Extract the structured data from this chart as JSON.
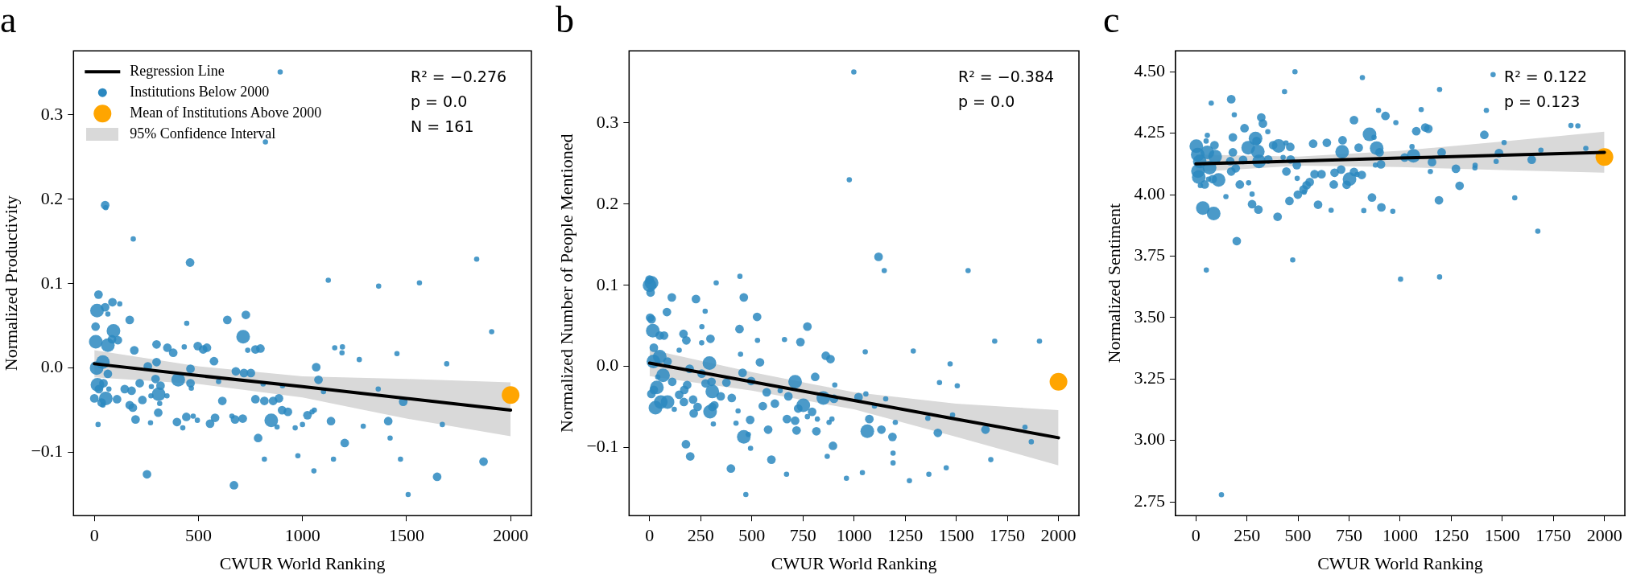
{
  "chart_data": [
    {
      "type": "bubble",
      "title": "a",
      "xlabel": "CWUR World Ranking",
      "ylabel": "Normalized Productivity",
      "xlim": [
        -100,
        2100
      ],
      "ylim": [
        -0.175,
        0.376
      ],
      "xticks": [
        0,
        500,
        1000,
        1500,
        2000
      ],
      "yticks": [
        {
          "value": -0.1,
          "label": "−0.1"
        },
        {
          "value": 0,
          "label": "0.0"
        },
        0.1,
        0.2,
        0.3
      ],
      "legend": "top left",
      "annotations": [
        "R² = −0.276",
        "p = 0.0",
        "N = 161",
        {
          "text": "95% Confidence Interval"
        }
      ],
      "series": [
        {
          "name": "Regression Line",
          "type": "line",
          "marker": "none",
          "color": "#000000",
          "x": [
            0,
            500,
            1000,
            1500,
            2000
          ],
          "values": [
            0.005,
            -0.009,
            -0.022,
            -0.036,
            -0.05
          ],
          "lower": [
            -0.011,
            -0.019,
            -0.035,
            -0.06,
            -0.081
          ],
          "upper": [
            0.021,
            0.002,
            -0.01,
            -0.013,
            -0.017
          ]
        },
        {
          "name": "Institutions Below 2000",
          "type": "bubble",
          "marker": "circle",
          "color": "#2b88c0",
          "x": [
            893,
            822,
            52,
            55,
            187,
            460,
            1837,
            1124,
            1366,
            1562,
            20,
            87,
            122,
            52,
            13,
            65,
            728,
            170,
            639,
            444,
            6,
            1909,
            92,
            715,
            7,
            85,
            113,
            65,
            299,
            351,
            432,
            497,
            379,
            192,
            523,
            541,
            737,
            774,
            798,
            1155,
            1192,
            1190,
            1454,
            1273,
            1693,
            575,
            1066,
            11,
            41,
            299,
            257,
            462,
            65,
            294,
            403,
            680,
            719,
            752,
            1077,
            597,
            462,
            218,
            15,
            44,
            22,
            70,
            146,
            179,
            274,
            318,
            466,
            904,
            811,
            1101,
            1364,
            0,
            55,
            35,
            109,
            231,
            272,
            309,
            349,
            615,
            774,
            817,
            859,
            887,
            1484,
            41,
            170,
            185,
            314,
            902,
            930,
            307,
            442,
            475,
            580,
            661,
            676,
            713,
            850,
            198,
            270,
            397,
            495,
            556,
            1024,
            1057,
            1046,
            1137,
            1412,
            1000,
            965,
            878,
            1292,
            1672,
            18,
            425,
            787,
            1421,
            1203,
            253,
            817,
            978,
            1149,
            1471,
            1870,
            1055,
            1647,
            671,
            1508
          ],
          "values": [
            0.351,
            0.268,
            0.193,
            0.19,
            0.153,
            0.125,
            0.129,
            0.104,
            0.097,
            0.101,
            0.087,
            0.078,
            0.076,
            0.072,
            0.068,
            0.064,
            0.063,
            0.057,
            0.057,
            0.053,
            0.049,
            0.043,
            0.044,
            0.037,
            0.031,
            0.034,
            0.033,
            0.027,
            0.028,
            0.024,
            0.025,
            0.026,
            0.018,
            0.021,
            0.022,
            0.024,
            0.021,
            0.022,
            0.023,
            0.024,
            0.025,
            0.018,
            0.017,
            0.01,
            0.005,
            0.008,
            0.001,
            0,
            0.007,
            0.007,
            0.002,
            -0.001,
            -0.007,
            -0.013,
            -0.014,
            -0.004,
            -0.006,
            -0.006,
            -0.014,
            -0.016,
            -0.018,
            -0.018,
            -0.02,
            -0.018,
            -0.025,
            -0.025,
            -0.025,
            -0.027,
            -0.022,
            -0.021,
            -0.024,
            -0.021,
            -0.019,
            -0.028,
            -0.025,
            -0.036,
            -0.036,
            -0.041,
            -0.037,
            -0.038,
            -0.033,
            -0.031,
            -0.033,
            -0.039,
            -0.037,
            -0.039,
            -0.039,
            -0.036,
            -0.04,
            -0.044,
            -0.044,
            -0.047,
            -0.042,
            -0.05,
            -0.052,
            -0.053,
            -0.058,
            -0.057,
            -0.059,
            -0.057,
            -0.061,
            -0.06,
            -0.062,
            -0.061,
            -0.065,
            -0.064,
            -0.062,
            -0.066,
            -0.056,
            -0.05,
            -0.052,
            -0.063,
            -0.063,
            -0.067,
            -0.071,
            -0.07,
            -0.069,
            -0.067,
            -0.067,
            -0.071,
            -0.083,
            -0.083,
            -0.089,
            -0.126,
            -0.108,
            -0.104,
            -0.108,
            -0.108,
            -0.111,
            -0.122,
            -0.129,
            -0.139,
            -0.15
          ],
          "sizes": [
            0.15,
            0.15,
            0.4,
            0.15,
            0.15,
            0.4,
            0.15,
            0.15,
            0.15,
            0.15,
            0.4,
            0.4,
            0.15,
            0.4,
            1,
            0.15,
            0.4,
            0.4,
            0.4,
            0.15,
            0.4,
            0.15,
            1,
            1,
            1,
            0.4,
            0.4,
            1,
            0.4,
            0.4,
            0.15,
            0.4,
            0.4,
            0.4,
            0.4,
            0.4,
            0.15,
            0.4,
            0.4,
            0.15,
            0.15,
            0.15,
            0.15,
            0.15,
            0.15,
            0.4,
            0.4,
            1,
            1,
            0.4,
            0.4,
            0.4,
            0.4,
            0.4,
            1,
            0.4,
            0.4,
            0.4,
            0.4,
            0.15,
            0.4,
            0.4,
            1,
            0.4,
            0.4,
            0.15,
            0.4,
            0.4,
            0.15,
            0.4,
            0.15,
            0.15,
            0.15,
            0.15,
            0.15,
            0.4,
            1,
            0.4,
            0.4,
            0.4,
            0.15,
            1,
            0.15,
            0.4,
            0.4,
            0.4,
            0.4,
            0.4,
            0.4,
            0.15,
            0.4,
            0.4,
            0.15,
            0.4,
            0.4,
            0.4,
            0.4,
            0.15,
            0.4,
            0.15,
            0.4,
            0.4,
            1,
            0.4,
            0.15,
            0.4,
            0.15,
            0.4,
            0.4,
            0.15,
            0.15,
            0.4,
            0.4,
            0.15,
            0.15,
            0.15,
            0.15,
            0.15,
            0.15,
            0.15,
            0.4,
            0.15,
            0.4,
            0.4,
            0.15,
            0.15,
            0.15,
            0.15,
            0.4,
            0.15,
            0.4,
            0.4,
            0.15
          ]
        },
        {
          "name": "Mean of Institutions Above 2000",
          "type": "scatter",
          "marker": "circle",
          "color": "#ffa500",
          "x": [
            2000
          ],
          "values": [
            -0.032
          ]
        }
      ]
    },
    {
      "type": "bubble",
      "title": "b",
      "xlabel": "CWUR World Ranking",
      "ylabel": "Normalized Number of People Mentioned",
      "xlim": [
        -100,
        2100
      ],
      "ylim": [
        -0.184,
        0.389
      ],
      "xticks": [
        0,
        250,
        500,
        750,
        1000,
        1250,
        1500,
        1750,
        2000
      ],
      "yticks": [
        {
          "value": -0.1,
          "label": "−0.1"
        },
        {
          "value": 0,
          "label": "0.0"
        },
        0.1,
        0.2,
        0.3
      ],
      "annotations": [
        "R² = −0.384",
        "p = 0.0"
      ],
      "series": [
        {
          "type": "line",
          "marker": "none",
          "color": "#000000",
          "x": [
            0,
            500,
            1000,
            1500,
            2000
          ],
          "values": [
            0.004,
            -0.019,
            -0.042,
            -0.065,
            -0.088
          ],
          "lower": [
            -0.012,
            -0.03,
            -0.053,
            -0.087,
            -0.122
          ],
          "upper": [
            0.021,
            -0.007,
            -0.032,
            -0.046,
            -0.054
          ]
        },
        {
          "type": "bubble",
          "marker": "circle",
          "color": "#2b88c0",
          "x": [
            999,
            977,
            1120,
            1148,
            1558,
            0,
            10,
            0,
            5,
            326,
            442,
            109,
            227,
            461,
            85,
            272,
            3,
            10,
            526,
            256,
            16,
            440,
            772,
            50,
            71,
            166,
            180,
            298,
            528,
            660,
            738,
            1688,
            1907,
            255,
            21,
            145,
            445,
            1290,
            1055,
            50,
            862,
            885,
            19,
            88,
            293,
            540,
            1470,
            196,
            66,
            40,
            255,
            455,
            810,
            1418,
            1505,
            111,
            184,
            274,
            303,
            376,
            497,
            712,
            36,
            21,
            170,
            307,
            573,
            639,
            906,
            1058,
            9,
            145,
            348,
            402,
            679,
            850,
            902,
            1022,
            1155,
            55,
            88,
            213,
            168,
            29,
            235,
            307,
            317,
            554,
            613,
            752,
            296,
            216,
            727,
            795,
            1100,
            1482,
            121,
            433,
            492,
            672,
            712,
            772,
            821,
            892,
            1075,
            312,
            423,
            878,
            1202,
            1361,
            580,
            719,
            816,
            1065,
            1134,
            1410,
            1643,
            1836,
            461,
            483,
            1188,
            1867,
            178,
            897,
            199,
            494,
            1191,
            1191,
            869,
            596,
            1669,
            398,
            1451,
            1041,
            670,
            1366,
            963,
            1271,
            471
          ],
          "values": [
            0.363,
            0.23,
            0.135,
            0.118,
            0.118,
            0.107,
            0.103,
            0.1,
            0.091,
            0.103,
            0.111,
            0.085,
            0.083,
            0.085,
            0.067,
            0.068,
            0.06,
            0.058,
            0.061,
            0.049,
            0.044,
            0.046,
            0.049,
            0.038,
            0.038,
            0.04,
            0.032,
            0.034,
            0.032,
            0.033,
            0.03,
            0.031,
            0.031,
            0.029,
            0.023,
            0.02,
            0.015,
            0.019,
            0.018,
            0.012,
            0.013,
            0.009,
            0.006,
            0.006,
            0.004,
            0.005,
            0.003,
            -0.003,
            -0.011,
            -0.013,
            -0.009,
            -0.008,
            -0.013,
            -0.02,
            -0.024,
            -0.019,
            -0.023,
            -0.021,
            -0.019,
            -0.02,
            -0.018,
            -0.019,
            -0.026,
            -0.029,
            -0.029,
            -0.031,
            -0.032,
            -0.03,
            -0.023,
            -0.034,
            -0.034,
            -0.035,
            -0.037,
            -0.039,
            -0.037,
            -0.039,
            -0.04,
            -0.038,
            -0.04,
            -0.044,
            -0.044,
            -0.041,
            -0.044,
            -0.051,
            -0.05,
            -0.05,
            -0.048,
            -0.049,
            -0.046,
            -0.048,
            -0.056,
            -0.058,
            -0.052,
            -0.056,
            -0.049,
            -0.06,
            -0.053,
            -0.055,
            -0.066,
            -0.065,
            -0.067,
            -0.062,
            -0.065,
            -0.065,
            -0.065,
            -0.071,
            -0.07,
            -0.069,
            -0.069,
            -0.064,
            -0.078,
            -0.079,
            -0.08,
            -0.08,
            -0.078,
            -0.082,
            -0.078,
            -0.075,
            -0.087,
            -0.084,
            -0.087,
            -0.093,
            -0.096,
            -0.098,
            -0.111,
            -0.101,
            -0.107,
            -0.119,
            -0.111,
            -0.115,
            -0.115,
            -0.126,
            -0.125,
            -0.131,
            -0.133,
            -0.133,
            -0.138,
            -0.141,
            -0.158
          ],
          "sizes": [
            0.15,
            0.15,
            0.4,
            0.15,
            0.15,
            0.4,
            1,
            1,
            0.4,
            0.15,
            0.15,
            0.4,
            0.4,
            0.4,
            0.4,
            0.15,
            0.4,
            0.4,
            0.4,
            0.15,
            1,
            0.4,
            0.4,
            0.4,
            0.4,
            0.4,
            0.4,
            0.4,
            0.15,
            0.15,
            0.4,
            0.15,
            0.15,
            0.15,
            0.4,
            0.15,
            0.15,
            0.15,
            0.15,
            1,
            0.4,
            0.4,
            1,
            0.4,
            1,
            0.4,
            0.15,
            0.4,
            1,
            0.15,
            0.4,
            0.4,
            0.4,
            0.15,
            0.15,
            0.4,
            0.4,
            0.4,
            0.4,
            0.4,
            0.4,
            1,
            1,
            0.4,
            0.4,
            1,
            0.4,
            0.15,
            0.15,
            0.15,
            0.4,
            0.4,
            0.4,
            0.4,
            0.4,
            1,
            0.4,
            0.4,
            0.15,
            1,
            1,
            0.4,
            0.4,
            1,
            0.4,
            0.4,
            0.4,
            0.4,
            0.4,
            1,
            1,
            0.4,
            0.4,
            0.4,
            0.15,
            0.15,
            0.15,
            0.15,
            0.4,
            0.4,
            0.4,
            0.15,
            0.15,
            0.15,
            0.4,
            0.15,
            0.15,
            0.15,
            0.15,
            0.15,
            0.4,
            0.4,
            0.4,
            1,
            0.4,
            0.4,
            0.4,
            0.15,
            1,
            0.15,
            0.4,
            0.15,
            0.4,
            0.4,
            0.4,
            0.15,
            0.15,
            0.15,
            0.15,
            0.4,
            0.15,
            0.4,
            0.15,
            0.15,
            0.15,
            0.15,
            0.15,
            0.15,
            0.15
          ]
        },
        {
          "type": "scatter",
          "marker": "circle",
          "color": "#ffa500",
          "x": [
            2000
          ],
          "values": [
            -0.019
          ]
        }
      ]
    },
    {
      "type": "bubble",
      "title": "c",
      "xlabel": "CWUR World Ranking",
      "ylabel": "Normalized Sentiment",
      "xlim": [
        -100,
        2100
      ],
      "ylim": [
        2.694,
        4.585
      ],
      "xticks": [
        0,
        250,
        500,
        750,
        1000,
        1250,
        1500,
        1750,
        2000
      ],
      "yticks": [
        2.75,
        {
          "value": 3,
          "label": "3.00"
        },
        3.25,
        {
          "value": 3.5,
          "label": "3.50"
        },
        3.75,
        {
          "value": 4,
          "label": "4.00"
        },
        4.25,
        {
          "value": 4.5,
          "label": "4.50"
        }
      ],
      "annotations": [
        "R² = 0.122",
        "p = 0.123"
      ],
      "series": [
        {
          "type": "line",
          "marker": "none",
          "color": "#000000",
          "x": [
            0,
            500,
            1000,
            1500,
            2000
          ],
          "values": [
            4.125,
            4.137,
            4.149,
            4.16,
            4.172
          ],
          "lower": [
            4.092,
            4.118,
            4.112,
            4.1,
            4.089
          ],
          "upper": [
            4.163,
            4.155,
            4.178,
            4.216,
            4.256
          ]
        },
        {
          "type": "bubble",
          "marker": "circle",
          "color": "#2b88c0",
          "x": [
            485,
            1455,
            815,
            1193,
            434,
            173,
            75,
            1422,
            1103,
            894,
            188,
            320,
            328,
            774,
            928,
            979,
            1836,
            1870,
            238,
            1123,
            1138,
            1079,
            352,
            850,
            56,
            1412,
            181,
            872,
            50,
            292,
            297,
            718,
            641,
            574,
            441,
            1509,
            2,
            91,
            378,
            405,
            462,
            256,
            797,
            885,
            1909,
            1689,
            1058,
            303,
            181,
            716,
            899,
            1203,
            1484,
            9,
            56,
            94,
            1065,
            427,
            1022,
            464,
            19,
            168,
            231,
            309,
            354,
            1156,
            1644,
            1470,
            494,
            906,
            879,
            1367,
            67,
            195,
            1273,
            1366,
            711,
            10,
            173,
            443,
            1148,
            774,
            679,
            581,
            615,
            789,
            812,
            14,
            111,
            82,
            62,
            496,
            752,
            557,
            215,
            675,
            738,
            258,
            43,
            22,
            1291,
            542,
            527,
            530,
            499,
            275,
            147,
            862,
            1190,
            1561,
            458,
            275,
            598,
            34,
            908,
            306,
            662,
            822,
            964,
            87,
            400,
            1674,
            200,
            474,
            51,
            1193,
            1002,
            125
          ],
          "values": [
            4.5,
            4.488,
            4.476,
            4.428,
            4.419,
            4.388,
            4.372,
            4.343,
            4.346,
            4.343,
            4.325,
            4.314,
            4.289,
            4.303,
            4.32,
            4.293,
            4.281,
            4.28,
            4.27,
            4.273,
            4.268,
            4.258,
            4.256,
            4.245,
            4.241,
            4.243,
            4.233,
            4.233,
            4.218,
            4.228,
            4.218,
            4.221,
            4.211,
            4.207,
            4.21,
            4.212,
            4.197,
            4.201,
            4.201,
            4.198,
            4.194,
            4.191,
            4.191,
            4.189,
            4.188,
            4.181,
            4.195,
            4.175,
            4.172,
            4.174,
            4.172,
            4.172,
            4.169,
            4.163,
            4.172,
            4.155,
            4.158,
            4.151,
            4.151,
            4.143,
            4.135,
            4.136,
            4.141,
            4.135,
            4.143,
            4.132,
            4.142,
            4.135,
            4.12,
            4.123,
            4.12,
            4.119,
            4.11,
            4.107,
            4.105,
            4.109,
            4.102,
            4.096,
            4.094,
            4.094,
            4.094,
            4.092,
            4.089,
            4.083,
            4.083,
            4.082,
            4.08,
            4.071,
            4.06,
            4.063,
            4.063,
            4.066,
            4.063,
            4.051,
            4.041,
            4.041,
            4.04,
            4.048,
            4.041,
            4.037,
            4.036,
            4.038,
            4.021,
            4.01,
            4.0,
            4.002,
            3.992,
            3.988,
            3.977,
            3.987,
            3.974,
            3.961,
            3.959,
            3.945,
            3.948,
            3.939,
            3.936,
            3.935,
            3.932,
            3.923,
            3.91,
            3.851,
            3.811,
            3.734,
            3.693,
            3.665,
            3.656,
            2.779
          ],
          "sizes": [
            0.15,
            0.15,
            0.15,
            0.15,
            0.15,
            0.4,
            0.15,
            0.15,
            0.15,
            0.15,
            0.15,
            0.4,
            0.4,
            0.4,
            0.4,
            0.15,
            0.15,
            0.15,
            0.4,
            0.4,
            0.4,
            0.4,
            0.15,
            1,
            0.15,
            0.4,
            0.4,
            0.15,
            0.15,
            1,
            0.4,
            0.4,
            0.4,
            0.4,
            0.15,
            0.15,
            1,
            0.4,
            0.4,
            1,
            0.4,
            1,
            0.4,
            1,
            0.15,
            0.15,
            0.15,
            1,
            0.4,
            1,
            0.4,
            0.4,
            0.4,
            1,
            1,
            1,
            1,
            0.15,
            0.4,
            0.4,
            1,
            0.4,
            0.4,
            1,
            0.4,
            0.4,
            0.4,
            0.15,
            0.4,
            0.4,
            0.15,
            0.15,
            1,
            0.4,
            0.4,
            0.15,
            0.4,
            1,
            0.4,
            0.4,
            0.15,
            0.4,
            0.4,
            0.4,
            0.4,
            0.15,
            0.4,
            1,
            1,
            0.4,
            0.15,
            0.15,
            1,
            0.4,
            0.4,
            0.4,
            0.4,
            0.15,
            0.4,
            0.15,
            0.4,
            0.4,
            0.4,
            0.15,
            0.4,
            0.15,
            0.15,
            0.4,
            0.4,
            0.15,
            0.4,
            0.4,
            0.4,
            1,
            0.4,
            0.4,
            0.15,
            0.15,
            0.15,
            1,
            0.4,
            0.15,
            0.4,
            0.15,
            0.15,
            0.15,
            0.15,
            0.15
          ]
        },
        {
          "type": "scatter",
          "marker": "circle",
          "color": "#ffa500",
          "x": [
            2000
          ],
          "values": [
            4.153
          ]
        }
      ]
    }
  ]
}
